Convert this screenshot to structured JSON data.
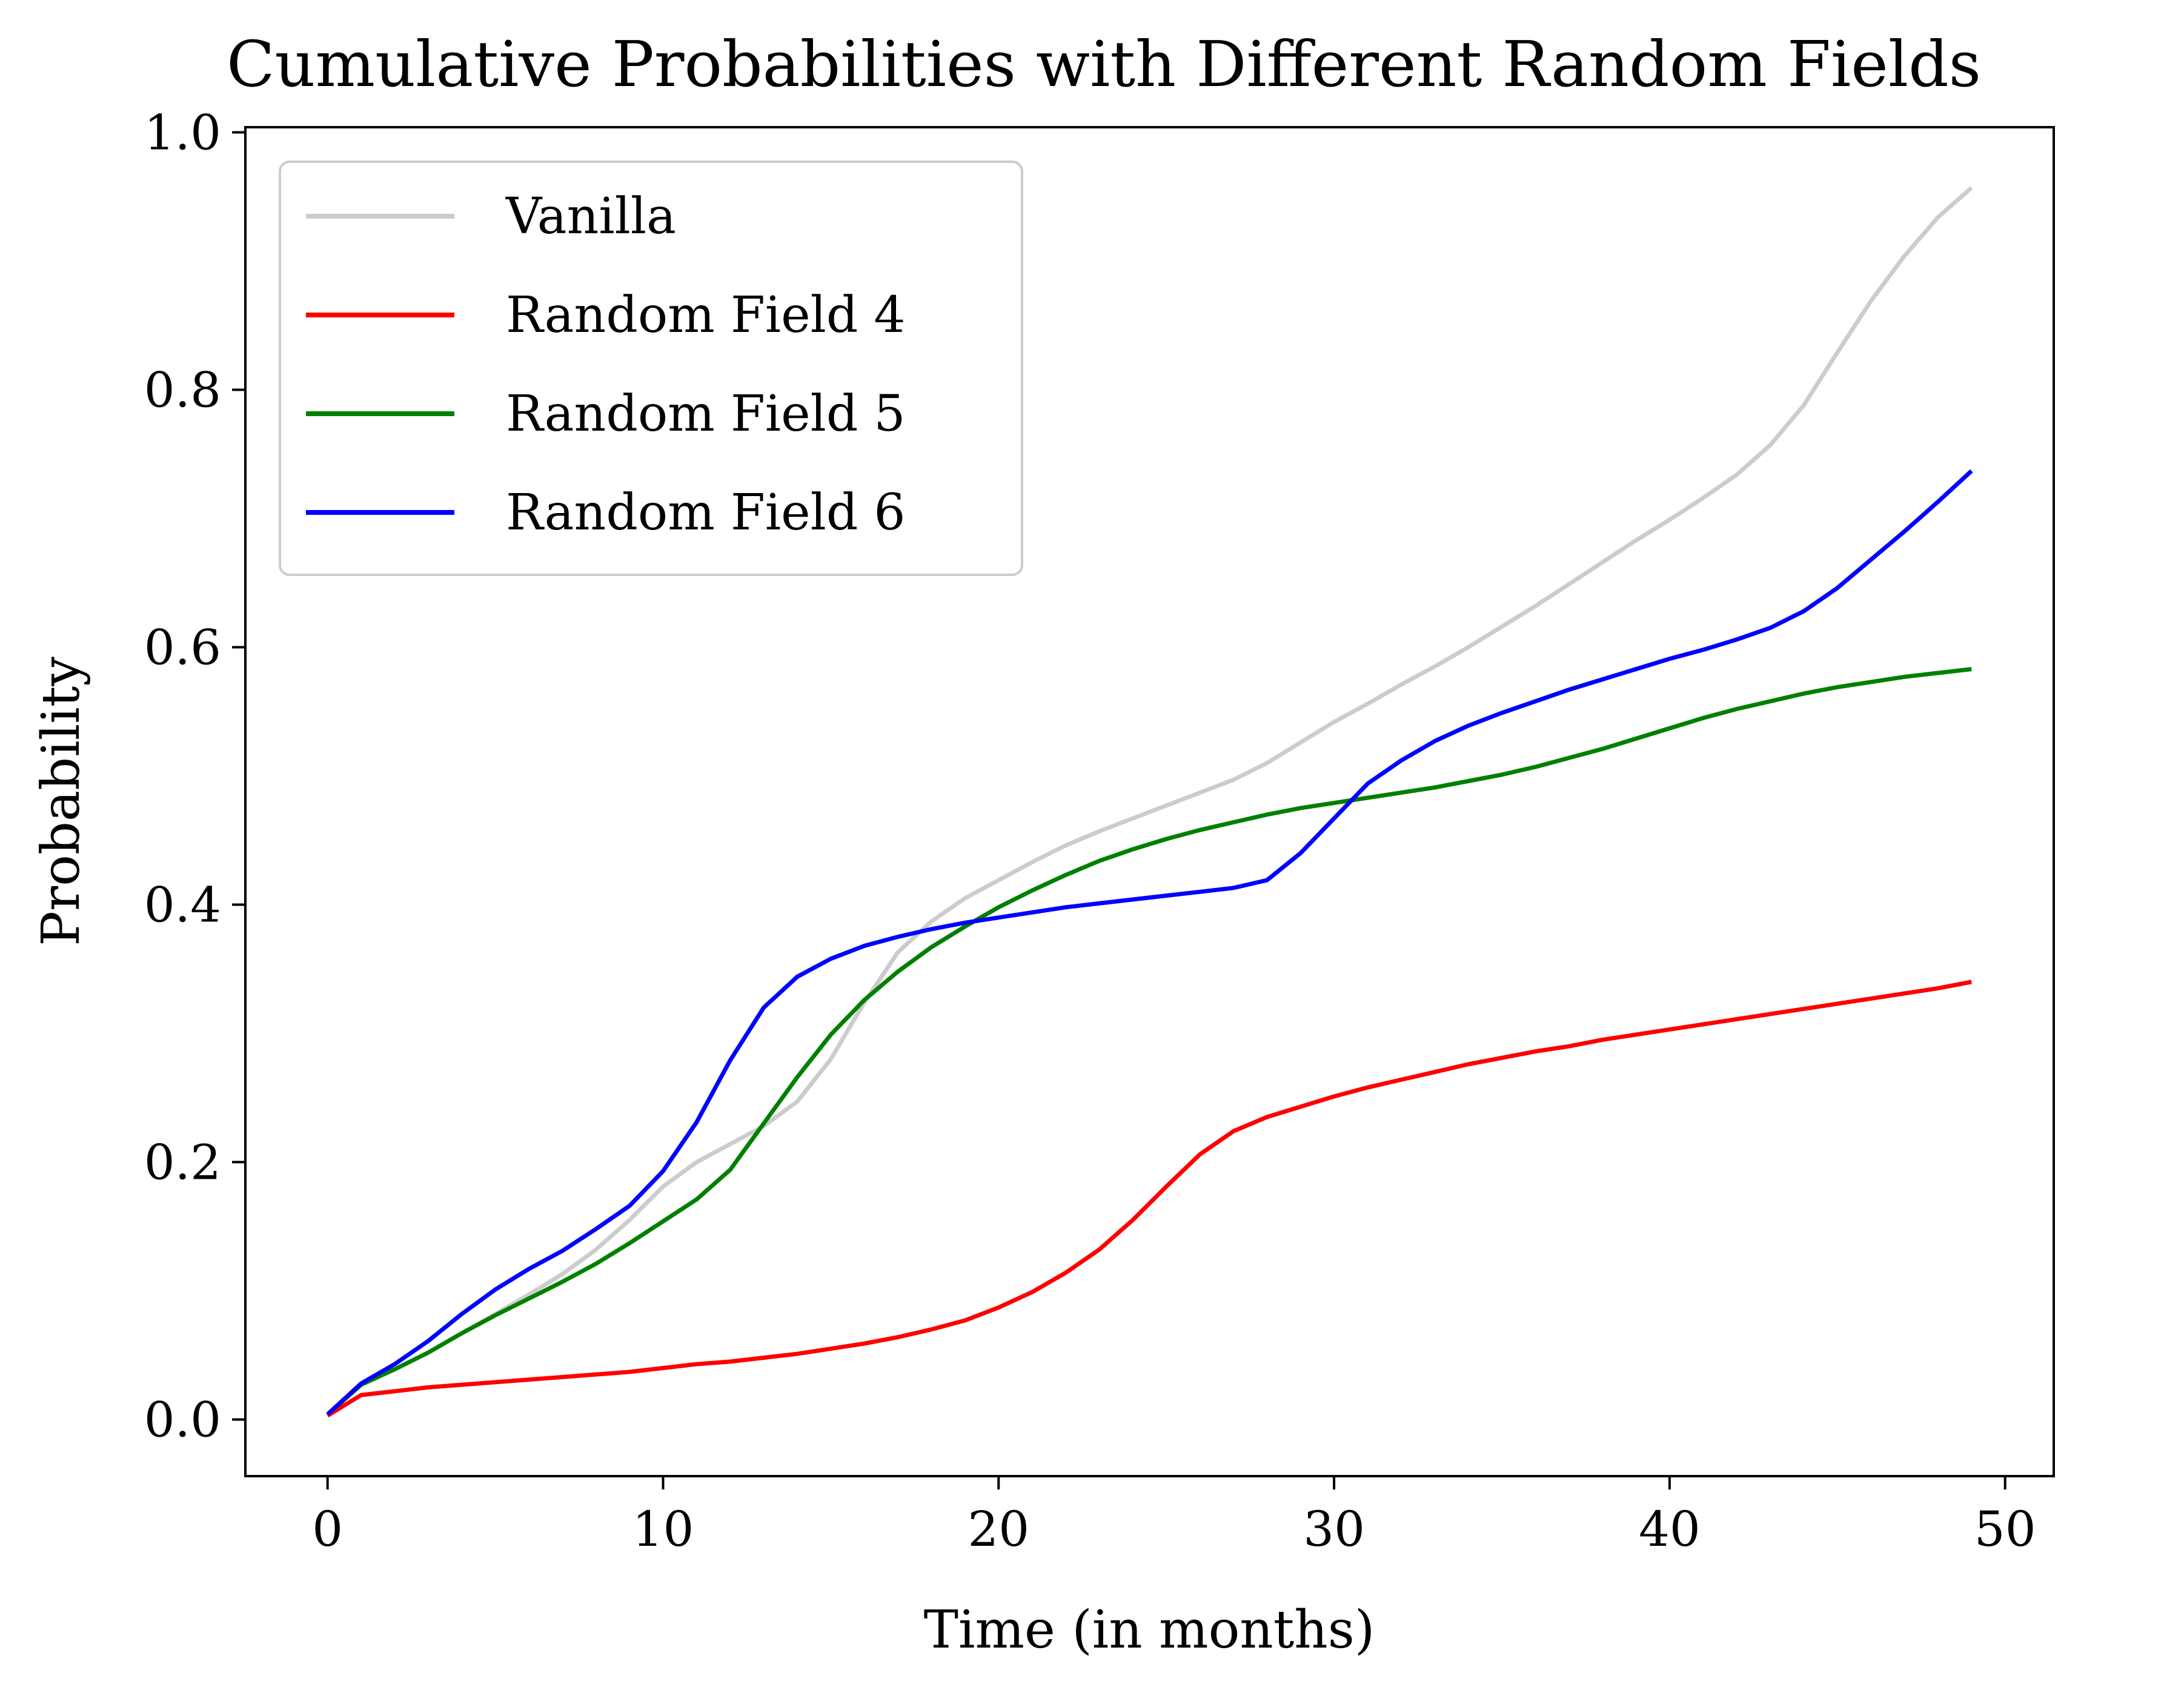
{
  "chart_data": {
    "type": "line",
    "title": "Cumulative Probabilities with Different Random Fields",
    "xlabel": "Time (in months)",
    "ylabel": "Probability",
    "xlim": [
      -2.45,
      51.45
    ],
    "ylim": [
      -0.044,
      1.004
    ],
    "xticks": [
      0,
      10,
      20,
      30,
      40,
      50
    ],
    "yticks": [
      0.0,
      0.2,
      0.4,
      0.6,
      0.8,
      1.0
    ],
    "xtick_labels": [
      "0",
      "10",
      "20",
      "30",
      "40",
      "50"
    ],
    "ytick_labels": [
      "0.0",
      "0.2",
      "0.4",
      "0.6",
      "0.8",
      "1.0"
    ],
    "grid": false,
    "legend_position": "upper-left",
    "x": [
      0,
      1,
      2,
      3,
      4,
      5,
      6,
      7,
      8,
      9,
      10,
      11,
      12,
      13,
      14,
      15,
      16,
      17,
      18,
      19,
      20,
      21,
      22,
      23,
      24,
      25,
      26,
      27,
      28,
      29,
      30,
      31,
      32,
      33,
      34,
      35,
      36,
      37,
      38,
      39,
      40,
      41,
      42,
      43,
      44,
      45,
      46,
      47,
      48,
      49
    ],
    "series": [
      {
        "name": "Vanilla",
        "color": "#cccccc",
        "values": [
          0.004,
          0.027,
          0.039,
          0.052,
          0.067,
          0.082,
          0.097,
          0.113,
          0.132,
          0.155,
          0.181,
          0.2,
          0.214,
          0.228,
          0.247,
          0.28,
          0.324,
          0.363,
          0.387,
          0.405,
          0.419,
          0.433,
          0.446,
          0.457,
          0.467,
          0.477,
          0.487,
          0.497,
          0.51,
          0.526,
          0.542,
          0.556,
          0.571,
          0.585,
          0.6,
          0.616,
          0.632,
          0.649,
          0.666,
          0.683,
          0.699,
          0.716,
          0.734,
          0.757,
          0.788,
          0.829,
          0.869,
          0.904,
          0.934,
          0.957
        ]
      },
      {
        "name": "Random Field 4",
        "color": "#ff0000",
        "values": [
          0.003,
          0.019,
          0.022,
          0.025,
          0.027,
          0.029,
          0.031,
          0.033,
          0.035,
          0.037,
          0.04,
          0.043,
          0.045,
          0.048,
          0.051,
          0.055,
          0.059,
          0.064,
          0.07,
          0.077,
          0.087,
          0.099,
          0.114,
          0.132,
          0.155,
          0.181,
          0.206,
          0.224,
          0.235,
          0.243,
          0.251,
          0.258,
          0.264,
          0.27,
          0.276,
          0.281,
          0.286,
          0.29,
          0.295,
          0.299,
          0.303,
          0.307,
          0.311,
          0.315,
          0.319,
          0.323,
          0.327,
          0.331,
          0.335,
          0.34
        ]
      },
      {
        "name": "Random Field 5",
        "color": "#008000",
        "values": [
          0.004,
          0.027,
          0.039,
          0.052,
          0.067,
          0.081,
          0.094,
          0.107,
          0.121,
          0.137,
          0.154,
          0.171,
          0.194,
          0.23,
          0.266,
          0.299,
          0.326,
          0.348,
          0.367,
          0.383,
          0.398,
          0.411,
          0.423,
          0.434,
          0.443,
          0.451,
          0.458,
          0.464,
          0.47,
          0.475,
          0.479,
          0.483,
          0.487,
          0.491,
          0.496,
          0.501,
          0.507,
          0.514,
          0.521,
          0.529,
          0.537,
          0.545,
          0.552,
          0.558,
          0.564,
          0.569,
          0.573,
          0.577,
          0.58,
          0.583
        ]
      },
      {
        "name": "Random Field 6",
        "color": "#0000ff",
        "values": [
          0.004,
          0.028,
          0.043,
          0.061,
          0.082,
          0.101,
          0.117,
          0.131,
          0.148,
          0.166,
          0.193,
          0.231,
          0.279,
          0.32,
          0.344,
          0.358,
          0.368,
          0.375,
          0.381,
          0.386,
          0.39,
          0.394,
          0.398,
          0.401,
          0.404,
          0.407,
          0.41,
          0.413,
          0.419,
          0.44,
          0.467,
          0.494,
          0.512,
          0.527,
          0.539,
          0.549,
          0.558,
          0.567,
          0.575,
          0.583,
          0.591,
          0.598,
          0.606,
          0.615,
          0.628,
          0.646,
          0.668,
          0.69,
          0.713,
          0.737
        ]
      }
    ]
  }
}
